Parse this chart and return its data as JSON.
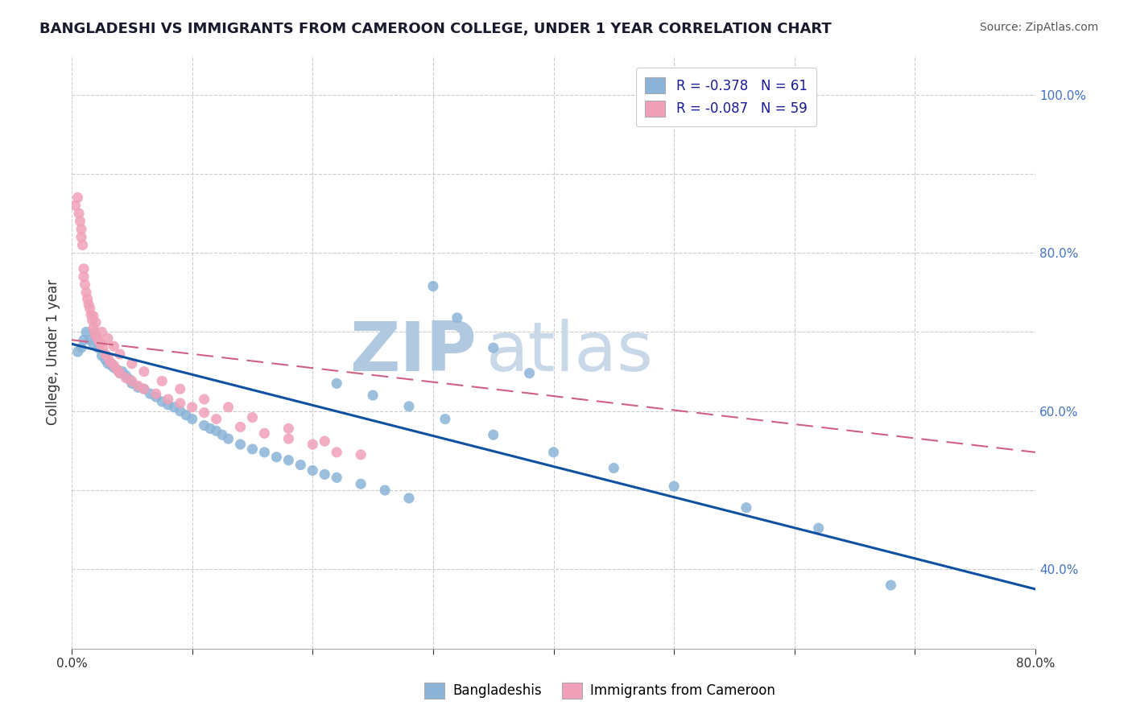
{
  "title": "BANGLADESHI VS IMMIGRANTS FROM CAMEROON COLLEGE, UNDER 1 YEAR CORRELATION CHART",
  "source": "Source: ZipAtlas.com",
  "ylabel": "College, Under 1 year",
  "xlim": [
    0.0,
    0.8
  ],
  "ylim": [
    0.3,
    1.05
  ],
  "xticks": [
    0.0,
    0.1,
    0.2,
    0.3,
    0.4,
    0.5,
    0.6,
    0.7,
    0.8
  ],
  "xticklabels": [
    "0.0%",
    "",
    "",
    "",
    "",
    "",
    "",
    "",
    "80.0%"
  ],
  "yticks_right": [
    0.4,
    0.5,
    0.6,
    0.7,
    0.8,
    0.9,
    1.0
  ],
  "yticklabels_right": [
    "40.0%",
    "",
    "60.0%",
    "",
    "80.0%",
    "",
    "100.0%"
  ],
  "r_blue": -0.378,
  "n_blue": 61,
  "r_pink": -0.087,
  "n_pink": 59,
  "blue_color": "#8BB4D8",
  "pink_color": "#F0A0B8",
  "blue_line_color": "#1050A0",
  "pink_line_color": "#D06080",
  "watermark_zip": "ZIP",
  "watermark_atlas": "atlas",
  "watermark_color_zip": "#B0C8E0",
  "watermark_color_atlas": "#C8D8E8",
  "legend_label_blue": "Bangladeshis",
  "legend_label_pink": "Immigrants from Cameroon",
  "blue_scatter_x": [
    0.005,
    0.008,
    0.01,
    0.012,
    0.015,
    0.018,
    0.02,
    0.022,
    0.025,
    0.028,
    0.03,
    0.033,
    0.035,
    0.038,
    0.04,
    0.042,
    0.045,
    0.048,
    0.05,
    0.055,
    0.06,
    0.065,
    0.07,
    0.075,
    0.08,
    0.085,
    0.09,
    0.095,
    0.1,
    0.11,
    0.115,
    0.12,
    0.125,
    0.13,
    0.14,
    0.15,
    0.16,
    0.17,
    0.18,
    0.19,
    0.2,
    0.21,
    0.22,
    0.24,
    0.26,
    0.28,
    0.3,
    0.32,
    0.35,
    0.38,
    0.22,
    0.25,
    0.28,
    0.31,
    0.35,
    0.4,
    0.45,
    0.5,
    0.56,
    0.62,
    0.68
  ],
  "blue_scatter_y": [
    0.675,
    0.68,
    0.69,
    0.7,
    0.69,
    0.685,
    0.695,
    0.68,
    0.67,
    0.665,
    0.66,
    0.658,
    0.655,
    0.652,
    0.648,
    0.65,
    0.645,
    0.64,
    0.635,
    0.63,
    0.628,
    0.622,
    0.618,
    0.612,
    0.608,
    0.605,
    0.6,
    0.595,
    0.59,
    0.582,
    0.578,
    0.575,
    0.57,
    0.565,
    0.558,
    0.552,
    0.548,
    0.542,
    0.538,
    0.532,
    0.525,
    0.52,
    0.516,
    0.508,
    0.5,
    0.49,
    0.758,
    0.718,
    0.68,
    0.648,
    0.635,
    0.62,
    0.606,
    0.59,
    0.57,
    0.548,
    0.528,
    0.505,
    0.478,
    0.452,
    0.38
  ],
  "pink_scatter_x": [
    0.003,
    0.005,
    0.006,
    0.007,
    0.008,
    0.008,
    0.009,
    0.01,
    0.01,
    0.011,
    0.012,
    0.013,
    0.014,
    0.015,
    0.016,
    0.017,
    0.018,
    0.019,
    0.02,
    0.022,
    0.024,
    0.026,
    0.028,
    0.03,
    0.032,
    0.035,
    0.038,
    0.04,
    0.045,
    0.05,
    0.055,
    0.06,
    0.07,
    0.08,
    0.09,
    0.1,
    0.11,
    0.12,
    0.14,
    0.16,
    0.18,
    0.2,
    0.22,
    0.018,
    0.02,
    0.025,
    0.03,
    0.035,
    0.04,
    0.05,
    0.06,
    0.075,
    0.09,
    0.11,
    0.13,
    0.15,
    0.18,
    0.21,
    0.24
  ],
  "pink_scatter_y": [
    0.86,
    0.87,
    0.85,
    0.84,
    0.83,
    0.82,
    0.81,
    0.78,
    0.77,
    0.76,
    0.75,
    0.742,
    0.735,
    0.73,
    0.722,
    0.715,
    0.705,
    0.7,
    0.695,
    0.69,
    0.685,
    0.68,
    0.672,
    0.668,
    0.662,
    0.658,
    0.652,
    0.648,
    0.642,
    0.638,
    0.632,
    0.628,
    0.622,
    0.615,
    0.61,
    0.605,
    0.598,
    0.59,
    0.58,
    0.572,
    0.565,
    0.558,
    0.548,
    0.72,
    0.712,
    0.7,
    0.692,
    0.682,
    0.672,
    0.66,
    0.65,
    0.638,
    0.628,
    0.615,
    0.605,
    0.592,
    0.578,
    0.562,
    0.545
  ],
  "blue_line_x0": 0.0,
  "blue_line_y0": 0.685,
  "blue_line_x1": 0.8,
  "blue_line_y1": 0.375,
  "pink_line_x0": 0.0,
  "pink_line_y0": 0.69,
  "pink_line_x1": 0.8,
  "pink_line_y1": 0.548
}
